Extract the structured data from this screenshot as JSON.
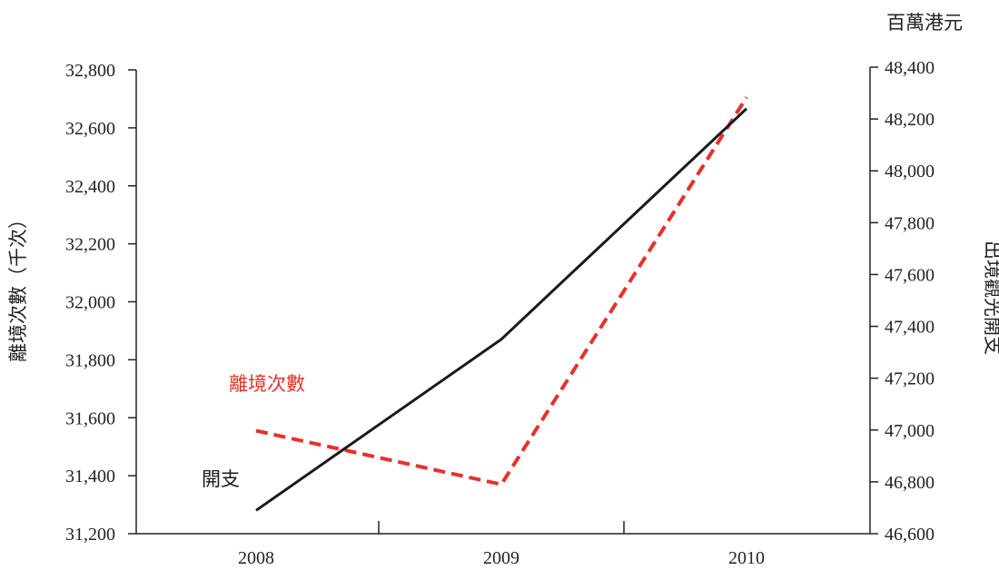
{
  "chart_data": {
    "type": "line",
    "x": [
      "2008",
      "2009",
      "2010"
    ],
    "y_left": {
      "title": "離境次數（千次）",
      "range": [
        31200,
        32800
      ],
      "ticks": [
        "31,200",
        "31,400",
        "31,600",
        "31,800",
        "32,000",
        "32,200",
        "32,400",
        "32,600",
        "32,800"
      ]
    },
    "y_right": {
      "title": "出境觀光開支",
      "unit": "百萬港元",
      "range": [
        46600,
        48400
      ],
      "ticks": [
        "46,600",
        "46,800",
        "47,000",
        "47,200",
        "47,400",
        "47,600",
        "47,800",
        "48,000",
        "48,200",
        "48,400"
      ]
    },
    "series": [
      {
        "name": "離境次數",
        "axis": "left",
        "values": [
          31555,
          31370,
          32705
        ],
        "color": "#e8302a",
        "style": "dashed"
      },
      {
        "name": "開支",
        "axis": "right",
        "values": [
          46690,
          47350,
          48240
        ],
        "color": "#1a1a1a",
        "style": "solid"
      }
    ],
    "grid": false,
    "legend": "inline-labels"
  }
}
